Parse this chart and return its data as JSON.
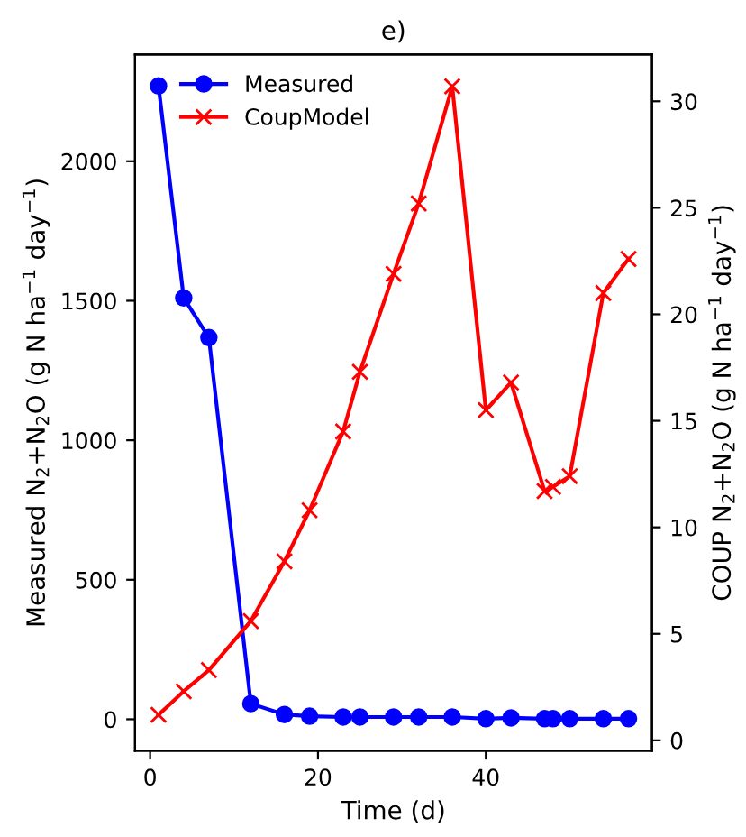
{
  "chart_data": {
    "type": "line",
    "title": "e)",
    "xlabel": "Time (d)",
    "ylabel": "Measured N$_{2}$+N$_{2}$O (g N ha$^{−1}$ day$^{−1}$)",
    "y2label": "COUP N$_{2}$+N$_{2}$O (g N ha$^{−1}$ day$^{−1}$)",
    "xlim": [
      -1.8,
      59.8
    ],
    "xticks": [
      0,
      20,
      40
    ],
    "ylim": [
      -113,
      2383
    ],
    "yticks": [
      0,
      500,
      1000,
      1500,
      2000
    ],
    "y2lim": [
      -0.49,
      32.2
    ],
    "y2ticks": [
      0,
      5,
      10,
      15,
      20,
      25,
      30
    ],
    "legend": "top left",
    "grid": false,
    "line_style": "solid",
    "series": [
      {
        "name": "Measured",
        "color": "#0000ff",
        "marker": "circle",
        "x": [
          1,
          4,
          7,
          12,
          16,
          19,
          23,
          25,
          29,
          32,
          36,
          40,
          43,
          47,
          48,
          50,
          54,
          57
        ],
        "values": [
          2270,
          1510,
          1368,
          56,
          17,
          11,
          8,
          8,
          8,
          8,
          8,
          2,
          5,
          2,
          2,
          2,
          2,
          2
        ]
      },
      {
        "name": "CoupModel",
        "color": "#ff0000",
        "marker": "cross",
        "axis": "y2",
        "x": [
          1,
          4,
          7,
          12,
          16,
          19,
          23,
          25,
          29,
          32,
          36,
          40,
          43,
          47,
          48,
          50,
          54,
          57
        ],
        "values": [
          1.2,
          2.3,
          3.3,
          5.6,
          8.4,
          10.8,
          14.5,
          17.3,
          21.9,
          25.2,
          30.7,
          15.5,
          16.8,
          11.7,
          11.9,
          12.4,
          21.0,
          22.6
        ]
      }
    ]
  }
}
